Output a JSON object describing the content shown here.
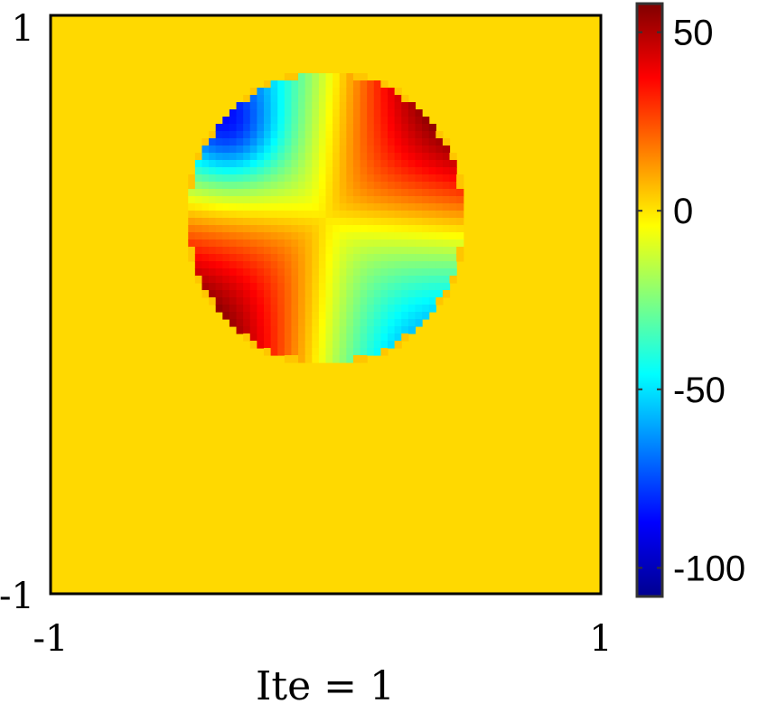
{
  "chart_data": {
    "type": "heatmap",
    "title": "",
    "xlabel": "Ite = 1",
    "ylabel": "",
    "xlim": [
      -1,
      1
    ],
    "ylim": [
      -1,
      1
    ],
    "x_ticks": [
      "-1",
      "1"
    ],
    "y_ticks": [
      "-1",
      "1"
    ],
    "colorbar": {
      "colormap": "jet",
      "range": [
        -108,
        58
      ],
      "ticks": [
        {
          "value": 50,
          "label": "50"
        },
        {
          "value": 0,
          "label": "0"
        },
        {
          "value": -50,
          "label": "-50"
        },
        {
          "value": -100,
          "label": "-100"
        }
      ]
    },
    "background_value": 5,
    "disk": {
      "center": [
        0.0,
        0.3
      ],
      "radius": 0.5
    },
    "colors": {
      "axis": "#000000",
      "colorbar_frame": "#333333"
    }
  }
}
